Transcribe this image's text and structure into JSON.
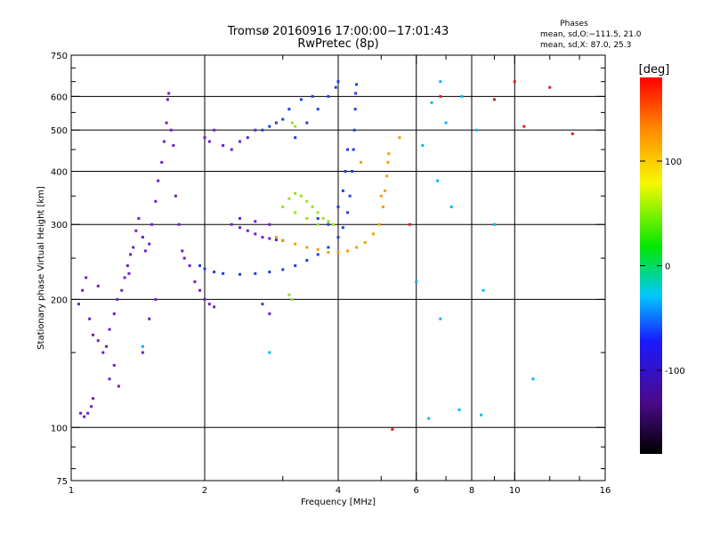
{
  "chart_data": {
    "type": "scatter",
    "title": "Tromsø 20160916 17:00:00−17:01:43",
    "subtitle": "RwPretec (8p)",
    "xlabel": "Frequency [MHz]",
    "ylabel": "Stationary phase Virtual Height [km]",
    "x_scale": "log",
    "y_scale": "log",
    "xlim": [
      1,
      16
    ],
    "ylim": [
      75,
      750
    ],
    "x_ticks": [
      1,
      2,
      4,
      6,
      8,
      10,
      16
    ],
    "x_tick_labels": [
      "1",
      "2",
      "4",
      "6",
      "8",
      "10",
      "16"
    ],
    "x_minor_ticks": [
      3,
      5,
      7,
      9,
      12,
      14
    ],
    "y_ticks": [
      75,
      100,
      200,
      300,
      400,
      500,
      600,
      750
    ],
    "y_tick_labels": [
      "75",
      "100",
      "200",
      "300",
      "400",
      "500",
      "600",
      "750"
    ],
    "y_minor_ticks": [
      80,
      90,
      150,
      250,
      350,
      450,
      550,
      650,
      700
    ],
    "grid": true,
    "stats": {
      "heading": "Phases",
      "line_o": "mean, sd,O:−111.5, 21.0",
      "line_x": "mean, sd,X:  87.0, 25.3"
    },
    "colorbar": {
      "label": "[deg]",
      "range": [
        -180,
        180
      ],
      "ticks": [
        100,
        0,
        -100
      ],
      "tick_labels": [
        "100",
        "0",
        "-100"
      ]
    },
    "series": [
      {
        "color": "#6a22c8",
        "phase_deg": -150,
        "points": [
          [
            1.05,
            108
          ],
          [
            1.07,
            106
          ],
          [
            1.09,
            108
          ],
          [
            1.11,
            112
          ],
          [
            1.12,
            117
          ],
          [
            1.04,
            195
          ],
          [
            1.06,
            210
          ],
          [
            1.08,
            225
          ],
          [
            1.1,
            180
          ],
          [
            1.12,
            165
          ],
          [
            1.15,
            160
          ],
          [
            1.18,
            150
          ],
          [
            1.2,
            155
          ],
          [
            1.22,
            170
          ],
          [
            1.25,
            185
          ],
          [
            1.27,
            200
          ],
          [
            1.3,
            210
          ],
          [
            1.32,
            225
          ],
          [
            1.34,
            240
          ],
          [
            1.36,
            255
          ],
          [
            1.38,
            265
          ],
          [
            1.4,
            290
          ],
          [
            1.42,
            310
          ],
          [
            1.45,
            280
          ],
          [
            1.47,
            260
          ],
          [
            1.5,
            270
          ],
          [
            1.52,
            300
          ],
          [
            1.55,
            340
          ],
          [
            1.57,
            380
          ],
          [
            1.6,
            420
          ],
          [
            1.62,
            470
          ],
          [
            1.64,
            520
          ],
          [
            1.65,
            590
          ],
          [
            1.66,
            610
          ],
          [
            1.68,
            500
          ],
          [
            1.7,
            460
          ],
          [
            1.72,
            350
          ],
          [
            1.75,
            300
          ],
          [
            1.78,
            260
          ],
          [
            1.8,
            250
          ],
          [
            1.85,
            240
          ],
          [
            1.9,
            220
          ],
          [
            1.95,
            210
          ],
          [
            2.0,
            200
          ],
          [
            2.05,
            195
          ],
          [
            2.1,
            192
          ],
          [
            2.0,
            480
          ],
          [
            2.05,
            470
          ],
          [
            2.1,
            500
          ],
          [
            2.2,
            460
          ],
          [
            2.3,
            450
          ],
          [
            2.4,
            470
          ],
          [
            2.5,
            480
          ],
          [
            2.6,
            500
          ],
          [
            2.3,
            300
          ],
          [
            2.4,
            295
          ],
          [
            2.5,
            290
          ],
          [
            2.6,
            285
          ],
          [
            2.7,
            280
          ],
          [
            2.8,
            278
          ],
          [
            2.9,
            276
          ],
          [
            3.0,
            275
          ],
          [
            2.4,
            310
          ],
          [
            2.6,
            305
          ],
          [
            2.8,
            300
          ],
          [
            2.7,
            195
          ],
          [
            2.8,
            185
          ],
          [
            1.35,
            230
          ],
          [
            1.25,
            140
          ],
          [
            1.28,
            125
          ],
          [
            1.22,
            130
          ],
          [
            1.15,
            215
          ],
          [
            1.5,
            180
          ],
          [
            1.55,
            200
          ],
          [
            1.45,
            150
          ]
        ]
      },
      {
        "color": "#1f3fe0",
        "phase_deg": -110,
        "points": [
          [
            1.95,
            240
          ],
          [
            2.0,
            236
          ],
          [
            2.1,
            232
          ],
          [
            2.2,
            230
          ],
          [
            2.4,
            229
          ],
          [
            2.6,
            230
          ],
          [
            2.8,
            232
          ],
          [
            3.0,
            235
          ],
          [
            3.2,
            240
          ],
          [
            3.4,
            247
          ],
          [
            3.6,
            255
          ],
          [
            3.8,
            265
          ],
          [
            4.0,
            280
          ],
          [
            4.1,
            295
          ],
          [
            4.2,
            320
          ],
          [
            4.25,
            350
          ],
          [
            4.3,
            400
          ],
          [
            4.33,
            450
          ],
          [
            4.35,
            500
          ],
          [
            4.37,
            560
          ],
          [
            4.38,
            610
          ],
          [
            4.4,
            640
          ],
          [
            3.2,
            480
          ],
          [
            3.4,
            520
          ],
          [
            3.6,
            560
          ],
          [
            3.8,
            600
          ],
          [
            3.95,
            630
          ],
          [
            4.0,
            650
          ],
          [
            3.5,
            600
          ],
          [
            3.3,
            590
          ],
          [
            3.1,
            560
          ],
          [
            2.7,
            500
          ],
          [
            2.8,
            510
          ],
          [
            2.9,
            520
          ],
          [
            3.0,
            530
          ],
          [
            3.6,
            310
          ],
          [
            3.8,
            300
          ],
          [
            4.0,
            330
          ],
          [
            4.1,
            360
          ],
          [
            4.15,
            400
          ],
          [
            4.2,
            450
          ]
        ]
      },
      {
        "color": "#f0a000",
        "phase_deg": 100,
        "points": [
          [
            3.8,
            258
          ],
          [
            4.0,
            258
          ],
          [
            4.2,
            260
          ],
          [
            4.4,
            265
          ],
          [
            4.6,
            272
          ],
          [
            4.8,
            285
          ],
          [
            4.95,
            300
          ],
          [
            5.05,
            330
          ],
          [
            5.1,
            360
          ],
          [
            5.15,
            390
          ],
          [
            5.18,
            420
          ],
          [
            5.2,
            440
          ],
          [
            5.0,
            350
          ],
          [
            5.5,
            480
          ],
          [
            4.5,
            420
          ],
          [
            3.6,
            262
          ],
          [
            3.4,
            265
          ],
          [
            3.2,
            270
          ],
          [
            3.0,
            275
          ],
          [
            2.9,
            280
          ]
        ]
      },
      {
        "color": "#9ae020",
        "phase_deg": 45,
        "points": [
          [
            3.0,
            330
          ],
          [
            3.1,
            345
          ],
          [
            3.2,
            355
          ],
          [
            3.3,
            350
          ],
          [
            3.4,
            340
          ],
          [
            3.5,
            330
          ],
          [
            3.6,
            320
          ],
          [
            3.7,
            310
          ],
          [
            3.8,
            305
          ],
          [
            3.9,
            300
          ],
          [
            3.2,
            320
          ],
          [
            3.4,
            310
          ],
          [
            3.6,
            300
          ],
          [
            3.1,
            205
          ],
          [
            3.15,
            200
          ],
          [
            3.2,
            510
          ],
          [
            3.15,
            520
          ]
        ]
      },
      {
        "color": "#00b8ff",
        "phase_deg": -60,
        "points": [
          [
            6.8,
            650
          ],
          [
            6.5,
            580
          ],
          [
            7.0,
            520
          ],
          [
            7.6,
            600
          ],
          [
            8.2,
            500
          ],
          [
            6.2,
            460
          ],
          [
            6.7,
            380
          ],
          [
            7.2,
            330
          ],
          [
            6.0,
            220
          ],
          [
            6.8,
            180
          ],
          [
            8.5,
            210
          ],
          [
            9.0,
            300
          ],
          [
            1.45,
            155
          ],
          [
            2.8,
            150
          ],
          [
            6.4,
            105
          ],
          [
            7.5,
            110
          ],
          [
            8.4,
            107
          ],
          [
            11.0,
            130
          ]
        ]
      },
      {
        "color": "#e02020",
        "phase_deg": 170,
        "points": [
          [
            5.3,
            99
          ],
          [
            10.0,
            650
          ],
          [
            12.0,
            630
          ],
          [
            9.0,
            590
          ],
          [
            10.5,
            510
          ],
          [
            13.5,
            490
          ],
          [
            5.8,
            300
          ],
          [
            6.8,
            600
          ]
        ]
      }
    ]
  }
}
